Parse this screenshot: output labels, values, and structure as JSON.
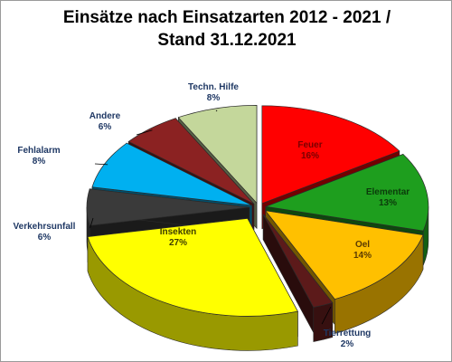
{
  "chart_data": {
    "type": "pie",
    "title_line1": "Einsätze nach Einsatzarten 2012 - 2021 /",
    "title_line2": "Stand 31.12.2021",
    "slices": [
      {
        "name": "Feuer",
        "value": 16,
        "label": "16%",
        "color": "#ff0000"
      },
      {
        "name": "Elementar",
        "value": 13,
        "label": "13%",
        "color": "#1e9e1e"
      },
      {
        "name": "Oel",
        "value": 14,
        "label": "14%",
        "color": "#ffc000"
      },
      {
        "name": "Tierrettung",
        "value": 2,
        "label": "2%",
        "color": "#5c1a1a"
      },
      {
        "name": "Insekten",
        "value": 27,
        "label": "27%",
        "color": "#ffff00"
      },
      {
        "name": "Verkehrsunfall",
        "value": 6,
        "label": "6%",
        "color": "#3a3a3a"
      },
      {
        "name": "Fehlalarm",
        "value": 8,
        "label": "8%",
        "color": "#00b0f0"
      },
      {
        "name": "Andere",
        "value": 6,
        "label": "6%",
        "color": "#8b2222"
      },
      {
        "name": "Techn. Hilfe",
        "value": 8,
        "label": "8%",
        "color": "#c4d79b"
      }
    ]
  }
}
